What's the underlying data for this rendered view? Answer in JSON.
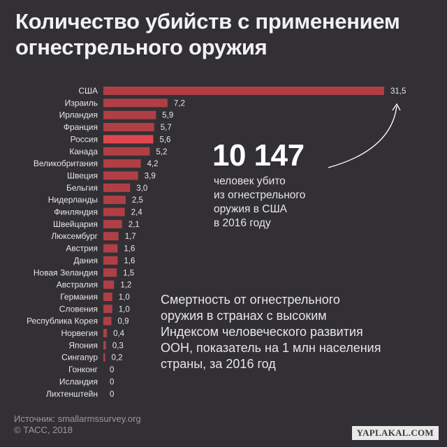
{
  "title": "Количество убийств с применением огнестрельного оружия",
  "highlight": {
    "number": "10 147",
    "caption": "человек убито\nиз огнестрельного\nоружия в США\nв 2016 году"
  },
  "description": "Смертность от огнестрельного\nоружия в странах с высоким\nИндексом человеческого развития\nООН, показатель на 1 млн населения\nстраны, за 2016 год",
  "source": {
    "line1": "Источник: smallarmssurvey.org",
    "line2": "© ТАСС, 2018"
  },
  "watermark": "YAPLAKAL.COM",
  "colors": {
    "background": "#323035",
    "bar": "#b03f45",
    "bar_highlight": "#e0474c",
    "arrow": "#ffffff"
  },
  "chart_data": {
    "type": "bar",
    "orientation": "horizontal",
    "categories": [
      "США",
      "Израиль",
      "Ирландия",
      "Франция",
      "Россия",
      "Канада",
      "Великобритания",
      "Швеция",
      "Бельгия",
      "Нидерланды",
      "Финляндия",
      "Швейцария",
      "Люксембург",
      "Австрия",
      "Дания",
      "Новая Зеландия",
      "Австралия",
      "Германия",
      "Словения",
      "Республика Корея",
      "Норвегия",
      "Япония",
      "Сингапур",
      "Гонконг",
      "Исландия",
      "Лихтенштейн"
    ],
    "values": [
      31.5,
      7.2,
      5.9,
      5.7,
      5.6,
      5.2,
      4.2,
      3.9,
      3.0,
      2.5,
      2.4,
      2.1,
      1.7,
      1.6,
      1.6,
      1.5,
      1.2,
      1.0,
      1.0,
      0.9,
      0.4,
      0.3,
      0.2,
      0,
      0,
      0
    ],
    "value_labels": [
      "31,5",
      "7,2",
      "5,9",
      "5,7",
      "5,6",
      "5,2",
      "4,2",
      "3,9",
      "3,0",
      "2,5",
      "2,4",
      "2,1",
      "1,7",
      "1,6",
      "1,6",
      "1,5",
      "1,2",
      "1,0",
      "1,0",
      "0,9",
      "0,4",
      "0,3",
      "0,2",
      "0",
      "0",
      "0"
    ],
    "highlight_category": "Россия",
    "xlim": [
      0,
      31.5
    ],
    "grid": false,
    "legend": "none"
  }
}
